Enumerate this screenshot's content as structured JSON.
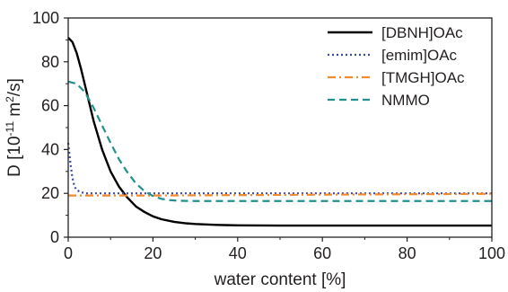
{
  "chart_data": {
    "type": "line",
    "xlabel": "water content [%]",
    "ylabel": "D [10",
    "ylabel_exponent": "-11",
    "ylabel_unit_prefix": " m",
    "ylabel_unit_exponent": "2",
    "ylabel_unit_suffix": "/s]",
    "xlim": [
      0,
      100
    ],
    "ylim": [
      0,
      100
    ],
    "xticks": [
      0,
      20,
      40,
      60,
      80,
      100
    ],
    "yticks": [
      0,
      20,
      40,
      60,
      80,
      100
    ],
    "grid": false,
    "legend_position": "top-right",
    "series": [
      {
        "name": "[DBNH]OAc",
        "color": "#000000",
        "dash": "solid",
        "x": [
          0,
          1,
          2,
          3,
          4,
          5,
          6,
          8,
          10,
          12,
          14,
          16,
          18,
          20,
          22,
          25,
          28,
          30,
          35,
          40,
          50,
          60,
          70,
          80,
          90,
          100
        ],
        "y": [
          91,
          89,
          84,
          77,
          69,
          61,
          53,
          40,
          30,
          23,
          18,
          14,
          11.5,
          9.5,
          8.2,
          7,
          6.3,
          6,
          5.6,
          5.4,
          5.3,
          5.3,
          5.3,
          5.3,
          5.3,
          5.3
        ]
      },
      {
        "name": "[emim]OAc",
        "color": "#3a49a8",
        "dash": "dotted",
        "x": [
          0,
          0.5,
          1,
          1.5,
          2,
          3,
          4,
          6,
          10,
          20,
          40,
          60,
          80,
          100
        ],
        "y": [
          43,
          34,
          27,
          23,
          21.5,
          20.5,
          20,
          20,
          20,
          20,
          20,
          20,
          20,
          20
        ]
      },
      {
        "name": "[TMGH]OAc",
        "color": "#f28a2e",
        "dash": "dashdot",
        "x": [
          0,
          20,
          40,
          60,
          80,
          100
        ],
        "y": [
          19,
          19,
          19.2,
          19.4,
          19.6,
          19.8
        ]
      },
      {
        "name": "NMMO",
        "color": "#22908d",
        "dash": "dashed",
        "x": [
          0,
          2,
          4,
          6,
          8,
          10,
          12,
          14,
          16,
          18,
          20,
          22,
          24,
          26,
          30,
          40,
          60,
          80,
          100
        ],
        "y": [
          71,
          70,
          66,
          59,
          51,
          43,
          35.5,
          29.5,
          24.5,
          21,
          18.8,
          17.5,
          16.9,
          16.6,
          16.5,
          16.5,
          16.5,
          16.5,
          16.5
        ]
      }
    ]
  }
}
